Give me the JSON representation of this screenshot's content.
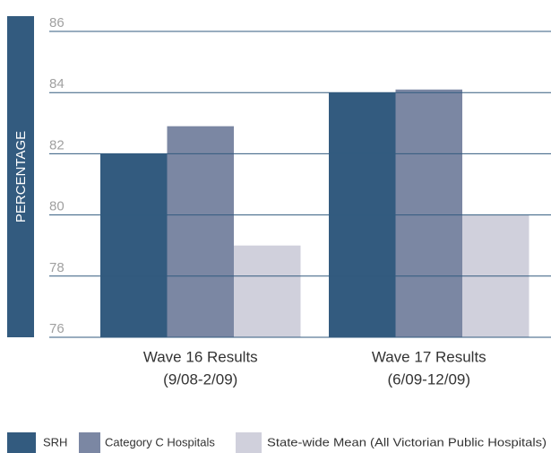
{
  "chart_data": {
    "type": "bar",
    "y_label": "PERCENTAGE",
    "categories": [
      [
        "Wave 16 Results",
        "(9/08-2/09)"
      ],
      [
        "Wave 17 Results",
        "(6/09-12/09)"
      ]
    ],
    "series": [
      {
        "name": "SRH",
        "color": "#335b7f",
        "values": [
          82,
          84
        ]
      },
      {
        "name": "Category C Hospitals",
        "color": "#7b87a3",
        "values": [
          82.9,
          84.1
        ]
      },
      {
        "name": "State-wide Mean (All Victorian Public Hospitals)",
        "color": "#d0d0dc",
        "values": [
          79,
          80
        ]
      }
    ],
    "ylim": [
      76,
      86
    ],
    "yticks": [
      76,
      78,
      80,
      82,
      84,
      86
    ],
    "grid": true,
    "legend": "bottom"
  }
}
